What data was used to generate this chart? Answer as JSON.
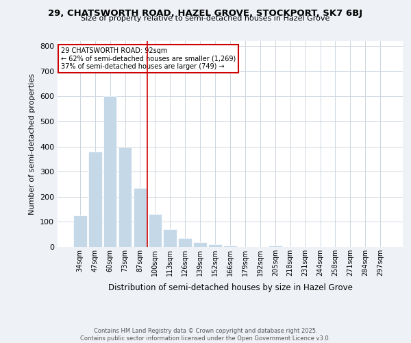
{
  "title_line1": "29, CHATSWORTH ROAD, HAZEL GROVE, STOCKPORT, SK7 6BJ",
  "title_line2": "Size of property relative to semi-detached houses in Hazel Grove",
  "xlabel": "Distribution of semi-detached houses by size in Hazel Grove",
  "ylabel": "Number of semi-detached properties",
  "footer_line1": "Contains HM Land Registry data © Crown copyright and database right 2025.",
  "footer_line2": "Contains public sector information licensed under the Open Government Licence v3.0.",
  "bin_labels": [
    "34sqm",
    "47sqm",
    "60sqm",
    "73sqm",
    "87sqm",
    "100sqm",
    "113sqm",
    "126sqm",
    "139sqm",
    "152sqm",
    "166sqm",
    "179sqm",
    "192sqm",
    "205sqm",
    "218sqm",
    "231sqm",
    "244sqm",
    "258sqm",
    "271sqm",
    "284sqm",
    "297sqm"
  ],
  "values": [
    125,
    380,
    600,
    395,
    235,
    130,
    70,
    35,
    20,
    10,
    5,
    0,
    0,
    5,
    0,
    0,
    0,
    0,
    0,
    0,
    0
  ],
  "property_label": "29 CHATSWORTH ROAD: 92sqm",
  "pct_smaller": 62,
  "pct_smaller_count": 1269,
  "pct_larger": 37,
  "pct_larger_count": 749,
  "bar_color": "#c5d8e8",
  "bar_edge_color": "#ffffff",
  "property_line_color": "#cc0000",
  "background_color": "#eef2f7",
  "plot_background_color": "#ffffff",
  "grid_color": "#ccd5df",
  "ylim": [
    0,
    820
  ],
  "yticks": [
    0,
    100,
    200,
    300,
    400,
    500,
    600,
    700,
    800
  ],
  "property_line_x": 4.5
}
